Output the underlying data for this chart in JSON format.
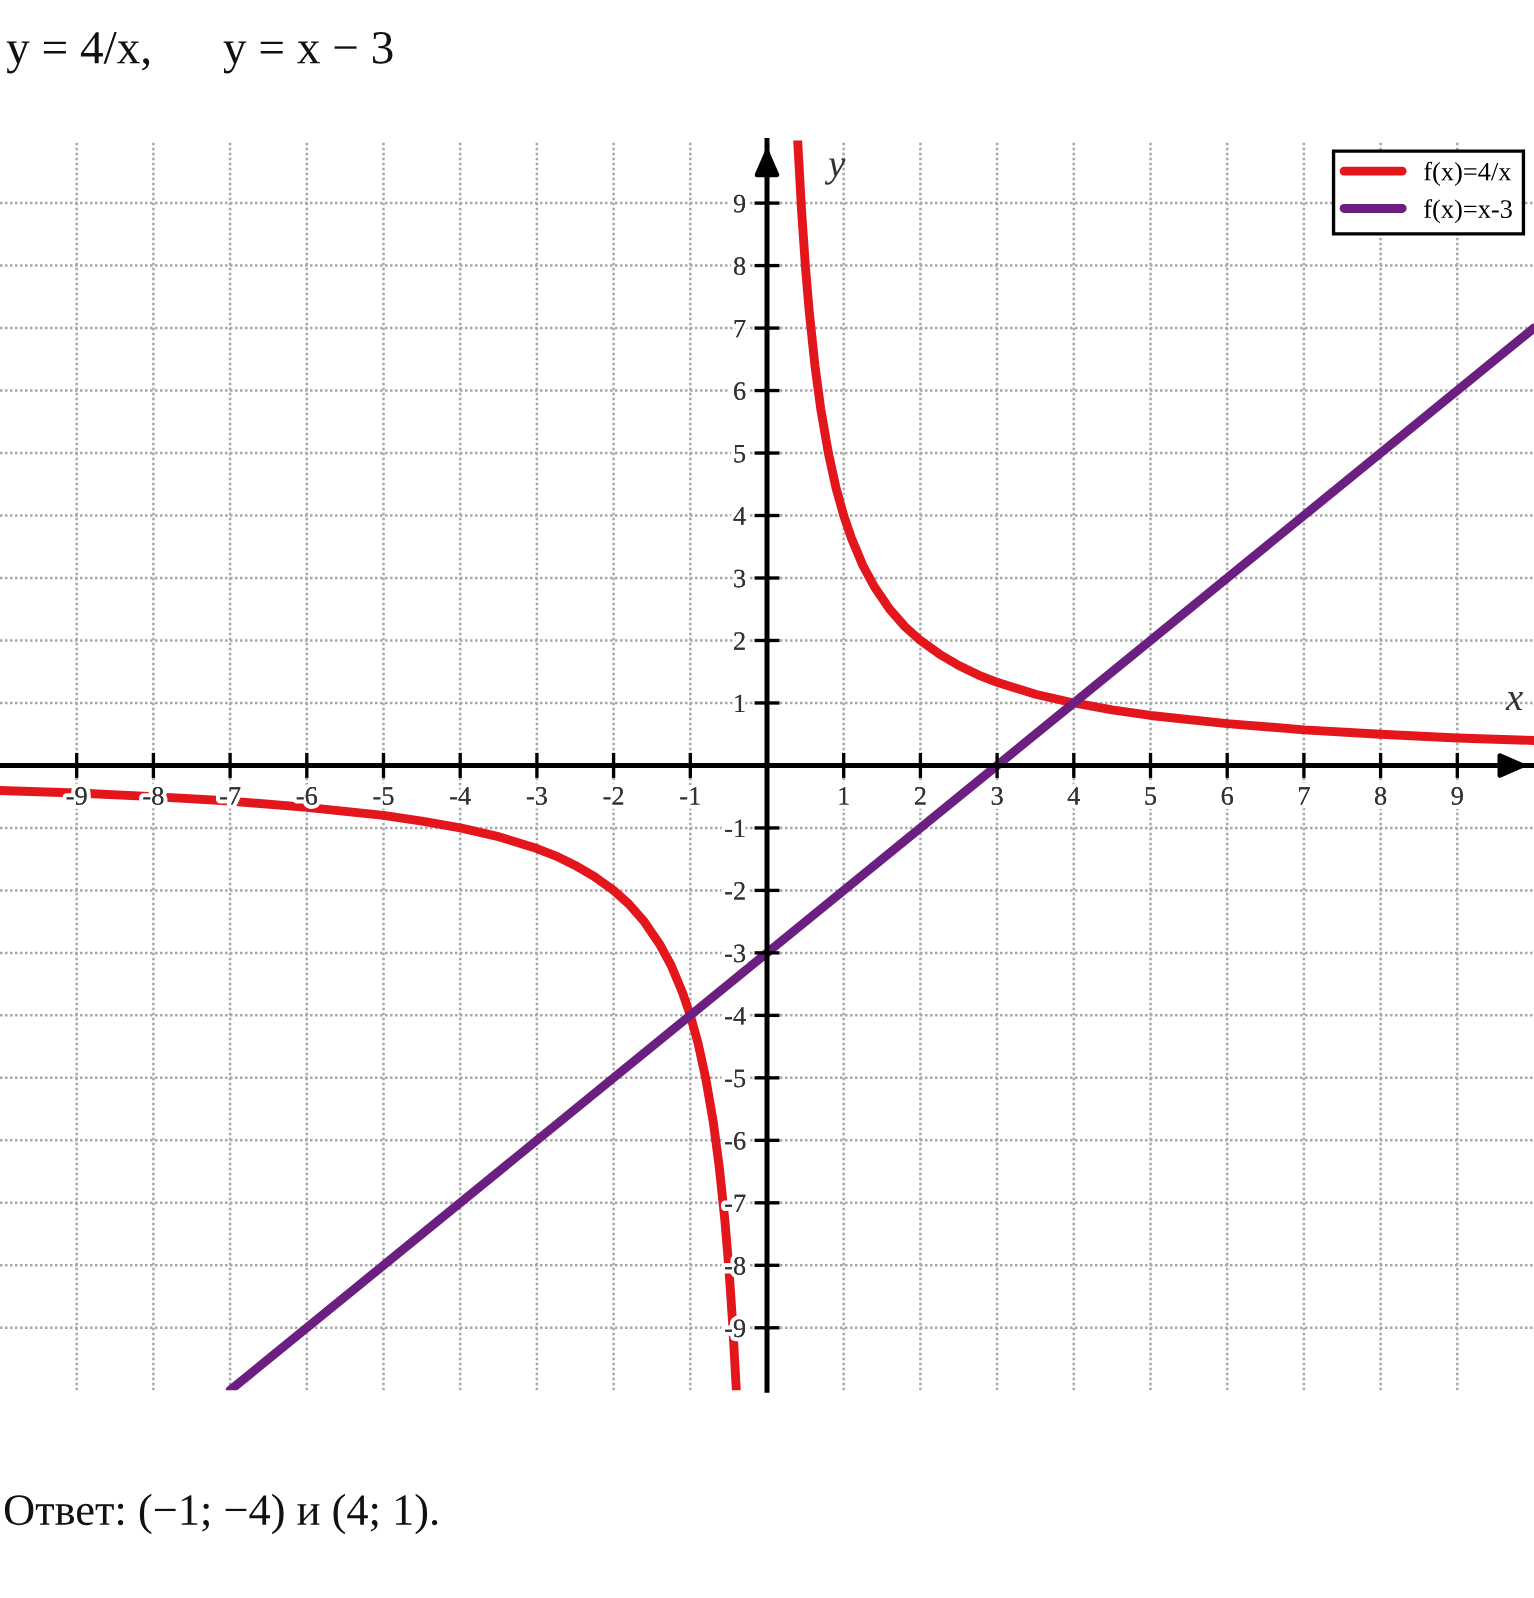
{
  "chart_data": {
    "type": "line",
    "title": "y = 4/x,      y = x − 3",
    "xlabel": "x",
    "ylabel": "y",
    "xlim": [
      -10,
      10
    ],
    "ylim": [
      -10,
      10
    ],
    "xticks": [
      -9,
      -8,
      -7,
      -6,
      -5,
      -4,
      -3,
      -2,
      -1,
      1,
      2,
      3,
      4,
      5,
      6,
      7,
      8,
      9
    ],
    "yticks": [
      -9,
      -8,
      -7,
      -6,
      -5,
      -4,
      -3,
      -2,
      -1,
      1,
      2,
      3,
      4,
      5,
      6,
      7,
      8,
      9
    ],
    "grid": true,
    "legend": "top right",
    "series": [
      {
        "name": "f(x)=4/x",
        "color": "#e3161b",
        "x": [
          -10,
          -9,
          -8,
          -7,
          -6,
          -5,
          -4.5,
          -4,
          -3.5,
          -3,
          -2.75,
          -2.5,
          -2.25,
          -2,
          -1.8,
          -1.6,
          -1.4,
          -1.25,
          -1.1,
          -1,
          -0.9,
          -0.8,
          -0.7,
          -0.625,
          -0.55,
          -0.5,
          -0.45,
          -0.4,
          0,
          0.4,
          0.45,
          0.5,
          0.55,
          0.625,
          0.7,
          0.8,
          0.9,
          1,
          1.1,
          1.25,
          1.4,
          1.6,
          1.8,
          2,
          2.25,
          2.5,
          2.75,
          3,
          3.5,
          4,
          4.5,
          5,
          6,
          7,
          8,
          9,
          10
        ],
        "values": [
          -0.4,
          -0.44,
          -0.5,
          -0.57,
          -0.67,
          -0.8,
          -0.89,
          -1,
          -1.14,
          -1.33,
          -1.45,
          -1.6,
          -1.78,
          -2,
          -2.22,
          -2.5,
          -2.86,
          -3.2,
          -3.64,
          -4,
          -4.44,
          -5,
          -5.71,
          -6.4,
          -7.27,
          -8,
          -8.89,
          -10,
          null,
          10,
          8.89,
          8,
          7.27,
          6.4,
          5.71,
          5,
          4.44,
          4,
          3.64,
          3.2,
          2.86,
          2.5,
          2.22,
          2,
          1.78,
          1.6,
          1.45,
          1.33,
          1.14,
          1,
          0.89,
          0.8,
          0.67,
          0.57,
          0.5,
          0.44,
          0.4
        ]
      },
      {
        "name": "f(x)=x-3",
        "color": "#6b1f80",
        "x": [
          -7,
          -1,
          0,
          3,
          4,
          10
        ],
        "values": [
          -10,
          -4,
          -3,
          0,
          1,
          7
        ]
      }
    ],
    "annotations": [
      "Ответ: (−1; −4) и (4; 1)."
    ]
  }
}
